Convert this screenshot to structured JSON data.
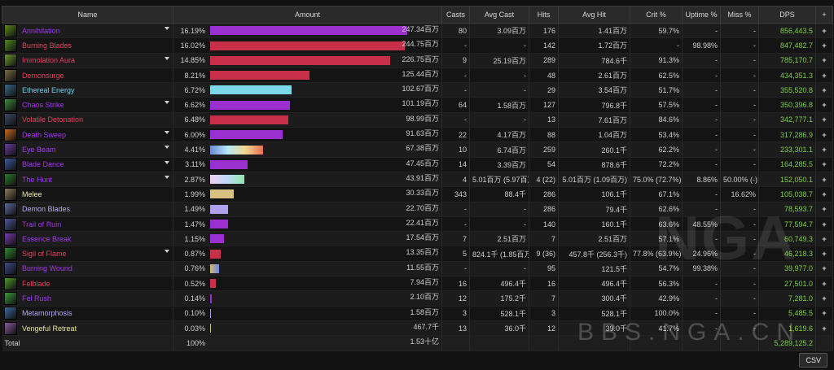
{
  "headers": [
    "Name",
    "Amount",
    "Casts",
    "Avg Cast",
    "Hits",
    "Avg Hit",
    "Crit %",
    "Uptime %",
    "Miss %",
    "DPS",
    "+"
  ],
  "rows": [
    {
      "name": "Annihilation",
      "color": "#a335ee",
      "icon": "#5a8a1a",
      "expand": true,
      "pct": "16.19%",
      "frac": 1.0,
      "bar": "#9b2fd0",
      "amount": "247.34百万",
      "casts": "80",
      "avg_cast": "3.09百万",
      "hits": "176",
      "avg_hit": "1.41百万",
      "crit": "59.7%",
      "uptime": "-",
      "miss": "-",
      "dps": "856,443.5"
    },
    {
      "name": "Burning Blades",
      "color": "#e04060",
      "icon": "#4a8a20",
      "expand": false,
      "pct": "16.02%",
      "frac": 0.99,
      "bar": "#c8304a",
      "amount": "244.75百万",
      "casts": "-",
      "avg_cast": "-",
      "hits": "142",
      "avg_hit": "1.72百万",
      "crit": "-",
      "uptime": "98.98%",
      "miss": "-",
      "dps": "847,482.7"
    },
    {
      "name": "Immolation Aura",
      "color": "#e04060",
      "icon": "#6a9a30",
      "expand": true,
      "pct": "14.85%",
      "frac": 0.917,
      "bar": "#c8304a",
      "amount": "226.75百万",
      "casts": "9",
      "avg_cast": "25.19百万",
      "hits": "289",
      "avg_hit": "784.6千",
      "crit": "91.3%",
      "uptime": "-",
      "miss": "-",
      "dps": "785,170.7"
    },
    {
      "name": "Demonsurge",
      "color": "#e04060",
      "icon": "#7a6a40",
      "expand": false,
      "pct": "8.21%",
      "frac": 0.507,
      "bar": "#c8304a",
      "amount": "125.44百万",
      "casts": "-",
      "avg_cast": "-",
      "hits": "48",
      "avg_hit": "2.61百万",
      "crit": "62.5%",
      "uptime": "-",
      "miss": "-",
      "dps": "434,351.3"
    },
    {
      "name": "Ethereal Energy",
      "color": "#6ad0e8",
      "icon": "#3a6a8a",
      "expand": false,
      "pct": "6.72%",
      "frac": 0.415,
      "bar": "#7ad8e8",
      "amount": "102.67百万",
      "casts": "-",
      "avg_cast": "-",
      "hits": "29",
      "avg_hit": "3.54百万",
      "crit": "51.7%",
      "uptime": "-",
      "miss": "-",
      "dps": "355,520.8"
    },
    {
      "name": "Chaos Strike",
      "color": "#a335ee",
      "icon": "#3a8a3a",
      "expand": true,
      "pct": "6.62%",
      "frac": 0.409,
      "bar": "#9b2fd0",
      "amount": "101.19百万",
      "casts": "64",
      "avg_cast": "1.58百万",
      "hits": "127",
      "avg_hit": "796.8千",
      "crit": "57.5%",
      "uptime": "-",
      "miss": "-",
      "dps": "350,396.8"
    },
    {
      "name": "Volatile Detonation",
      "color": "#e04060",
      "icon": "#3a4a6a",
      "expand": false,
      "pct": "6.48%",
      "frac": 0.4,
      "bar": "#c8304a",
      "amount": "98.99百万",
      "casts": "-",
      "avg_cast": "-",
      "hits": "13",
      "avg_hit": "7.61百万",
      "crit": "84.6%",
      "uptime": "-",
      "miss": "-",
      "dps": "342,777.1"
    },
    {
      "name": "Death Sweep",
      "color": "#a335ee",
      "icon": "#c86a20",
      "expand": true,
      "pct": "6.00%",
      "frac": 0.37,
      "bar": "#9b2fd0",
      "amount": "91.63百万",
      "casts": "22",
      "avg_cast": "4.17百万",
      "hits": "88",
      "avg_hit": "1.04百万",
      "crit": "53.4%",
      "uptime": "-",
      "miss": "-",
      "dps": "317,286.9"
    },
    {
      "name": "Eye Beam",
      "color": "#a335ee",
      "icon": "#6a3aa0",
      "expand": true,
      "pct": "4.41%",
      "frac": 0.272,
      "bar": "multi",
      "amount": "67.38百万",
      "casts": "10",
      "avg_cast": "6.74百万",
      "hits": "259",
      "avg_hit": "260.1千",
      "crit": "62.2%",
      "uptime": "-",
      "miss": "-",
      "dps": "233,301.1"
    },
    {
      "name": "Blade Dance",
      "color": "#a335ee",
      "icon": "#3a5aa0",
      "expand": true,
      "pct": "3.11%",
      "frac": 0.192,
      "bar": "#9b2fd0",
      "amount": "47.45百万",
      "casts": "14",
      "avg_cast": "3.39百万",
      "hits": "54",
      "avg_hit": "878.6千",
      "crit": "72.2%",
      "uptime": "-",
      "miss": "-",
      "dps": "164,285.5"
    },
    {
      "name": "The Hunt",
      "color": "#a335ee",
      "icon": "#2a7a2a",
      "expand": true,
      "pct": "2.87%",
      "frac": 0.177,
      "bar": "multi2",
      "amount": "43.91百万",
      "casts": "4",
      "avg_cast": "5.01百万 (5.97百万)",
      "hits": "4 (22)",
      "avg_hit": "5.01百万 (1.09百万)",
      "crit": "75.0% (72.7%)",
      "uptime": "8.86%",
      "miss": "50.00% (-)",
      "dps": "152,050.1"
    },
    {
      "name": "Melee",
      "color": "#e8e8a0",
      "icon": "#8a7a5a",
      "expand": false,
      "pct": "1.99%",
      "frac": 0.123,
      "bar": "#d8c080",
      "amount": "30.33百万",
      "casts": "343",
      "avg_cast": "88.4千",
      "hits": "286",
      "avg_hit": "106.1千",
      "crit": "67.1%",
      "uptime": "-",
      "miss": "16.62%",
      "dps": "105,038.7"
    },
    {
      "name": "Demon Blades",
      "color": "#b8a8f0",
      "icon": "#5a6aa0",
      "expand": false,
      "pct": "1.49%",
      "frac": 0.092,
      "bar": "#b0a0f0",
      "amount": "22.70百万",
      "casts": "-",
      "avg_cast": "-",
      "hits": "286",
      "avg_hit": "79.4千",
      "crit": "62.6%",
      "uptime": "-",
      "miss": "-",
      "dps": "78,593.7"
    },
    {
      "name": "Trail of Ruin",
      "color": "#a335ee",
      "icon": "#4a5a9a",
      "expand": false,
      "pct": "1.47%",
      "frac": 0.091,
      "bar": "#9b2fd0",
      "amount": "22.41百万",
      "casts": "-",
      "avg_cast": "-",
      "hits": "140",
      "avg_hit": "160.1千",
      "crit": "63.6%",
      "uptime": "48.55%",
      "miss": "-",
      "dps": "77,594.7"
    },
    {
      "name": "Essence Break",
      "color": "#a335ee",
      "icon": "#7a3ab0",
      "expand": false,
      "pct": "1.15%",
      "frac": 0.071,
      "bar": "#9b2fd0",
      "amount": "17.54百万",
      "casts": "7",
      "avg_cast": "2.51百万",
      "hits": "7",
      "avg_hit": "2.51百万",
      "crit": "57.1%",
      "uptime": "-",
      "miss": "-",
      "dps": "60,749.3"
    },
    {
      "name": "Sigil of Flame",
      "color": "#e04060",
      "icon": "#2a8a2a",
      "expand": true,
      "pct": "0.87%",
      "frac": 0.054,
      "bar": "#c8304a",
      "amount": "13.35百万",
      "casts": "5",
      "avg_cast": "824.1千 (1.85百万)",
      "hits": "9 (36)",
      "avg_hit": "457.8千 (256.3千)",
      "crit": "77.8% (63.9%)",
      "uptime": "24.96%",
      "miss": "-",
      "dps": "46,218.3"
    },
    {
      "name": "Burning Wound",
      "color": "#a335ee",
      "icon": "#3a4a8a",
      "expand": false,
      "pct": "0.76%",
      "frac": 0.047,
      "bar": "multi3",
      "amount": "11.55百万",
      "casts": "-",
      "avg_cast": "-",
      "hits": "95",
      "avg_hit": "121.5千",
      "crit": "54.7%",
      "uptime": "99.38%",
      "miss": "-",
      "dps": "39,977.0"
    },
    {
      "name": "Felblade",
      "color": "#e04060",
      "icon": "#4a9a2a",
      "expand": false,
      "pct": "0.52%",
      "frac": 0.032,
      "bar": "#c8304a",
      "amount": "7.94百万",
      "casts": "16",
      "avg_cast": "496.4千",
      "hits": "16",
      "avg_hit": "496.4千",
      "crit": "56.3%",
      "uptime": "-",
      "miss": "-",
      "dps": "27,501.0"
    },
    {
      "name": "Fel Rush",
      "color": "#a335ee",
      "icon": "#3a9a3a",
      "expand": false,
      "pct": "0.14%",
      "frac": 0.009,
      "bar": "#9b2fd0",
      "amount": "2.10百万",
      "casts": "12",
      "avg_cast": "175.2千",
      "hits": "7",
      "avg_hit": "300.4千",
      "crit": "42.9%",
      "uptime": "-",
      "miss": "-",
      "dps": "7,281.0"
    },
    {
      "name": "Metamorphosis",
      "color": "#b8a8f0",
      "icon": "#3a6aa0",
      "expand": false,
      "pct": "0.10%",
      "frac": 0.006,
      "bar": "#b0a0f0",
      "amount": "1.58百万",
      "casts": "3",
      "avg_cast": "528.1千",
      "hits": "3",
      "avg_hit": "528.1千",
      "crit": "100.0%",
      "uptime": "-",
      "miss": "-",
      "dps": "5,485.5"
    },
    {
      "name": "Vengeful Retreat",
      "color": "#e8e8a0",
      "icon": "#8a5aa0",
      "expand": false,
      "pct": "0.03%",
      "frac": 0.002,
      "bar": "#d8c080",
      "amount": "467.7千",
      "casts": "13",
      "avg_cast": "36.0千",
      "hits": "12",
      "avg_hit": "39.0千",
      "crit": "41.7%",
      "uptime": "-",
      "miss": "-",
      "dps": "1,619.6"
    }
  ],
  "total": {
    "label": "Total",
    "pct": "100%",
    "amount": "1.53十亿",
    "dps": "5,289,125.2"
  },
  "csv_label": "CSV",
  "watermark": "NGA",
  "watermark_sub": "BBS.NGA.CN"
}
